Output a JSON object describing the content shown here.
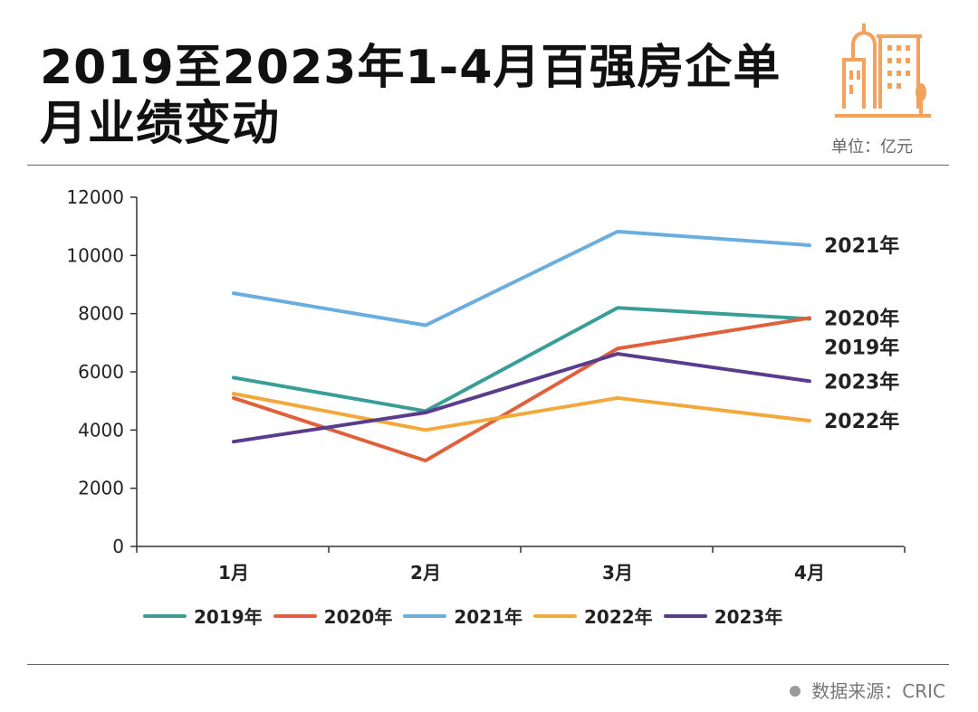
{
  "header": {
    "title_line1": "2019至2023年1-4月百强房企单",
    "title_line2": "月业绩变动",
    "unit": "单位：亿元",
    "logo_icon": "building-icon"
  },
  "footer": {
    "source": "数据来源：CRIC"
  },
  "chart_data": {
    "type": "line",
    "title": "2019至2023年1-4月百强房企单月业绩变动",
    "categories": [
      "1月",
      "2月",
      "3月",
      "4月"
    ],
    "ylim": [
      0,
      12000
    ],
    "yticks": [
      "0",
      "2000",
      "4000",
      "6000",
      "8000",
      "10000",
      "12000"
    ],
    "grid": false,
    "legend": "bottom",
    "series": [
      {
        "name": "2019年",
        "color": "#3a9e98",
        "values": [
          5800,
          4650,
          8200,
          7820
        ]
      },
      {
        "name": "2020年",
        "color": "#e0603c",
        "values": [
          5100,
          2950,
          6800,
          7850
        ]
      },
      {
        "name": "2021年",
        "color": "#6aaee0",
        "values": [
          8700,
          7600,
          10820,
          10350
        ]
      },
      {
        "name": "2022年",
        "color": "#f2a93b",
        "values": [
          5250,
          4000,
          5100,
          4320
        ]
      },
      {
        "name": "2023年",
        "color": "#5a3c8c",
        "values": [
          3600,
          4600,
          6620,
          5680
        ]
      }
    ]
  }
}
